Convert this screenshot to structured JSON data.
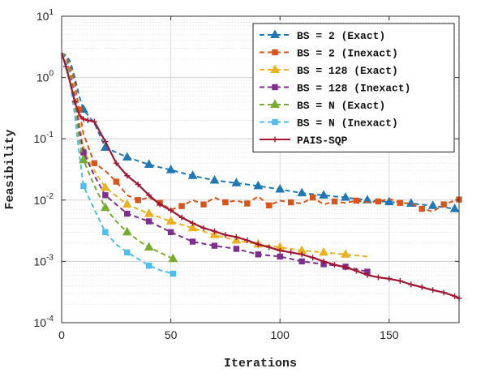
{
  "chart_data": {
    "type": "line",
    "title": "",
    "xlabel": "Iterations",
    "ylabel": "Feasibility",
    "xscale": "linear",
    "yscale": "log",
    "xlim": [
      0,
      182
    ],
    "ylim": [
      0.0001,
      10
    ],
    "xticks": [
      0,
      50,
      100,
      150
    ],
    "xtick_labels": [
      "0",
      "50",
      "100",
      "150"
    ],
    "yticks": [
      0.0001,
      0.001,
      0.01,
      0.1,
      1,
      10
    ],
    "ytick_labels": [
      {
        "base": "10",
        "exp": "-4"
      },
      {
        "base": "10",
        "exp": "-3"
      },
      {
        "base": "10",
        "exp": "-2"
      },
      {
        "base": "10",
        "exp": "-1"
      },
      {
        "base": "10",
        "exp": "0"
      },
      {
        "base": "10",
        "exp": "1"
      }
    ],
    "grid": true,
    "legend_position": "top-right",
    "series": [
      {
        "name": "BS = 2 (Exact)",
        "color": "#1f77b4",
        "dash": "dashed",
        "marker": "triangle",
        "x": [
          0,
          2,
          4,
          6,
          8,
          10,
          15,
          20,
          30,
          40,
          50,
          60,
          70,
          80,
          90,
          100,
          110,
          120,
          130,
          140,
          150,
          160,
          170,
          180
        ],
        "y": [
          2.5,
          2.3,
          1.8,
          1.0,
          0.5,
          0.3,
          0.18,
          0.072,
          0.05,
          0.038,
          0.031,
          0.025,
          0.021,
          0.019,
          0.017,
          0.015,
          0.013,
          0.012,
          0.011,
          0.01,
          0.0093,
          0.0088,
          0.0081,
          0.0072
        ],
        "marker_idx": [
          5,
          7,
          8,
          9,
          10,
          11,
          12,
          13,
          14,
          15,
          16,
          17,
          18,
          19,
          20,
          21,
          22,
          23
        ]
      },
      {
        "name": "BS = 2 (Inexact)",
        "color": "#d9541a",
        "dash": "dashed",
        "marker": "square",
        "x": [
          0,
          2,
          4,
          6,
          8,
          10,
          15,
          20,
          25,
          30,
          35,
          40,
          45,
          50,
          55,
          60,
          65,
          70,
          75,
          80,
          85,
          90,
          95,
          100,
          105,
          110,
          115,
          120,
          125,
          130,
          135,
          140,
          145,
          150,
          155,
          160,
          165,
          170,
          175,
          180,
          182
        ],
        "y": [
          2.5,
          2.2,
          1.5,
          0.8,
          0.3,
          0.12,
          0.04,
          0.03,
          0.02,
          0.012,
          0.01,
          0.011,
          0.009,
          0.007,
          0.008,
          0.01,
          0.0085,
          0.011,
          0.0092,
          0.0098,
          0.0088,
          0.0115,
          0.0082,
          0.0098,
          0.0092,
          0.0088,
          0.011,
          0.0085,
          0.0095,
          0.009,
          0.0098,
          0.0092,
          0.0095,
          0.0105,
          0.009,
          0.0088,
          0.0072,
          0.0065,
          0.0085,
          0.0098,
          0.0102
        ],
        "marker_idx": [
          4,
          6,
          8,
          10,
          12,
          14,
          16,
          18,
          20,
          22,
          24,
          26,
          28,
          30,
          32,
          34,
          36,
          38,
          40
        ]
      },
      {
        "name": "BS = 128 (Exact)",
        "color": "#edb120",
        "dash": "dashed",
        "marker": "triangle",
        "x": [
          0,
          2,
          4,
          6,
          8,
          10,
          15,
          20,
          30,
          40,
          50,
          60,
          70,
          80,
          90,
          100,
          110,
          120,
          130,
          140
        ],
        "y": [
          2.5,
          2.0,
          1.2,
          0.6,
          0.2,
          0.065,
          0.03,
          0.016,
          0.0085,
          0.006,
          0.0045,
          0.0035,
          0.0027,
          0.0022,
          0.0019,
          0.0017,
          0.0015,
          0.0014,
          0.0013,
          0.0012
        ],
        "marker_idx": [
          5,
          7,
          8,
          9,
          10,
          11,
          12,
          13,
          14,
          15,
          16,
          17,
          18
        ]
      },
      {
        "name": "BS = 128 (Inexact)",
        "color": "#7e2f8e",
        "dash": "dashed",
        "marker": "square",
        "x": [
          0,
          2,
          4,
          6,
          8,
          10,
          15,
          20,
          30,
          40,
          50,
          60,
          70,
          80,
          90,
          100,
          110,
          120,
          130,
          140
        ],
        "y": [
          2.5,
          2.0,
          1.1,
          0.5,
          0.15,
          0.06,
          0.025,
          0.012,
          0.006,
          0.0045,
          0.003,
          0.0021,
          0.0018,
          0.0016,
          0.0013,
          0.0012,
          0.001,
          0.0009,
          0.00082,
          0.00068
        ],
        "marker_idx": [
          5,
          7,
          8,
          9,
          10,
          11,
          12,
          13,
          14,
          15,
          16,
          17,
          18,
          19
        ]
      },
      {
        "name": "BS = N (Exact)",
        "color": "#77ac30",
        "dash": "dashed",
        "marker": "triangle",
        "x": [
          0,
          2,
          4,
          6,
          8,
          10,
          15,
          20,
          25,
          30,
          35,
          40,
          45,
          51
        ],
        "y": [
          2.5,
          2.0,
          1.0,
          0.4,
          0.1,
          0.045,
          0.017,
          0.0075,
          0.0045,
          0.003,
          0.0022,
          0.0017,
          0.0014,
          0.0011
        ],
        "marker_idx": [
          5,
          7,
          9,
          11,
          13
        ]
      },
      {
        "name": "BS = N (Inexact)",
        "color": "#4dbeee",
        "dash": "dashed",
        "marker": "square",
        "x": [
          0,
          2,
          4,
          6,
          8,
          10,
          15,
          20,
          25,
          30,
          35,
          40,
          45,
          51
        ],
        "y": [
          2.5,
          1.8,
          0.8,
          0.25,
          0.06,
          0.017,
          0.007,
          0.003,
          0.0019,
          0.0014,
          0.0011,
          0.00085,
          0.00072,
          0.00063
        ],
        "marker_idx": [
          5,
          7,
          9,
          11,
          13
        ]
      },
      {
        "name": "PAIS-SQP",
        "color": "#a2142f",
        "dash": "solid",
        "marker": "plus",
        "x": [
          0,
          2,
          4,
          6,
          8,
          10,
          12,
          15,
          20,
          25,
          30,
          35,
          40,
          45,
          50,
          55,
          60,
          65,
          70,
          75,
          80,
          85,
          90,
          95,
          100,
          105,
          110,
          115,
          120,
          125,
          130,
          135,
          140,
          145,
          150,
          155,
          160,
          165,
          170,
          175,
          180,
          182
        ],
        "y": [
          2.5,
          1.5,
          0.8,
          0.4,
          0.25,
          0.21,
          0.2,
          0.19,
          0.09,
          0.04,
          0.025,
          0.018,
          0.012,
          0.0085,
          0.0068,
          0.0052,
          0.0042,
          0.0035,
          0.0031,
          0.0027,
          0.0025,
          0.0022,
          0.0019,
          0.0017,
          0.0015,
          0.0014,
          0.0013,
          0.00115,
          0.001,
          0.00088,
          0.0008,
          0.0007,
          0.0006,
          0.00055,
          0.00052,
          0.00048,
          0.00042,
          0.00038,
          0.00034,
          0.00031,
          0.00027,
          0.00025
        ],
        "marker_idx": [
          1,
          3,
          5,
          6,
          7,
          8,
          9,
          10,
          11,
          12,
          13,
          14,
          15,
          16,
          17,
          18,
          19,
          20,
          21,
          22,
          23,
          24,
          25,
          26,
          27,
          28,
          29,
          30,
          31,
          32,
          33,
          34,
          35,
          36,
          37,
          38,
          39,
          40,
          41
        ]
      }
    ]
  }
}
